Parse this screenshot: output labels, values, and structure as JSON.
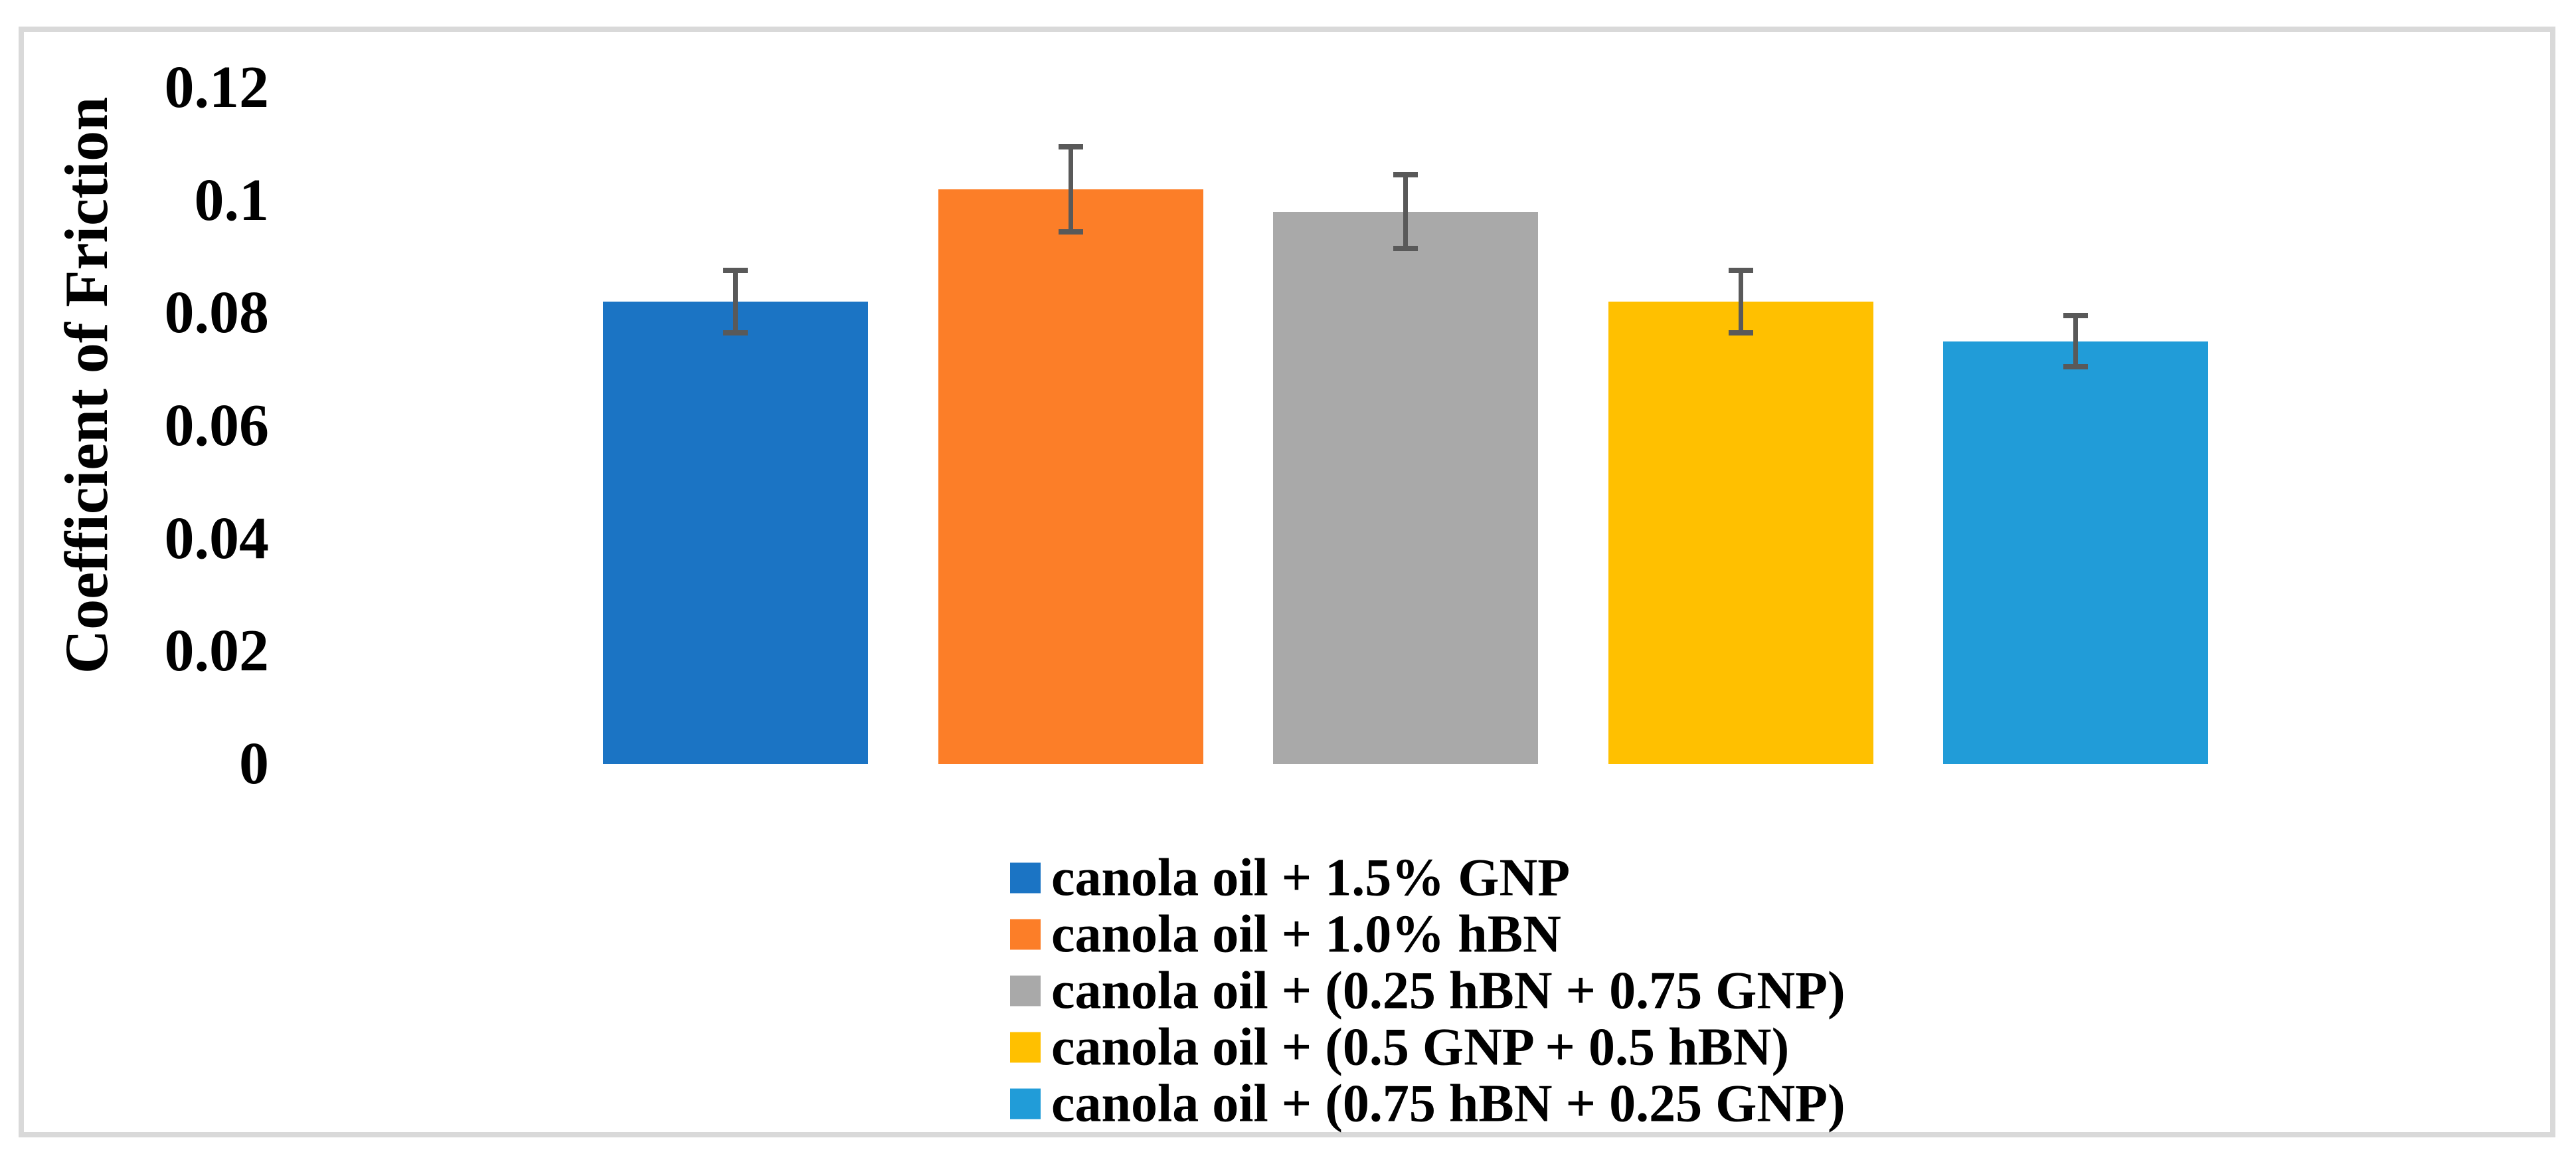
{
  "figure": {
    "background": "#FFFFFF",
    "border_color": "#D9D9D9"
  },
  "chart_data": {
    "type": "bar",
    "title": "",
    "xlabel": "",
    "ylabel": "Coefficient of Friction",
    "ylim": [
      0,
      0.12
    ],
    "ytick_step": 0.02,
    "ytick_labels": [
      "0",
      "0.02",
      "0.04",
      "0.06",
      "0.08",
      "0.1",
      "0.12"
    ],
    "grid": false,
    "legend_position": "bottom",
    "error_bar_color": "#595959",
    "categories": [
      "canola oil + 1.5% GNP",
      "canola oil + 1.0% hBN",
      "canola oil + (0.25 hBN + 0.75 GNP)",
      "canola oil + (0.5 GNP + 0.5 hBN)",
      "canola oil + (0.75 hBN + 0.25 GNP)"
    ],
    "bars": [
      {
        "label": "canola oil + 1.5% GNP",
        "value": 0.082,
        "error": 0.006,
        "color": "#1B74C4"
      },
      {
        "label": "canola oil + 1.0% hBN",
        "value": 0.102,
        "error": 0.008,
        "color": "#FC7E28"
      },
      {
        "label": "canola oil + (0.25 hBN + 0.75 GNP)",
        "value": 0.098,
        "error": 0.007,
        "color": "#A9A9A9"
      },
      {
        "label": "canola oil + (0.5 GNP + 0.5 hBN)",
        "value": 0.082,
        "error": 0.006,
        "color": "#FFC000"
      },
      {
        "label": "canola oil + (0.75 hBN + 0.25 GNP)",
        "value": 0.075,
        "error": 0.005,
        "color": "#219CD8"
      }
    ]
  }
}
